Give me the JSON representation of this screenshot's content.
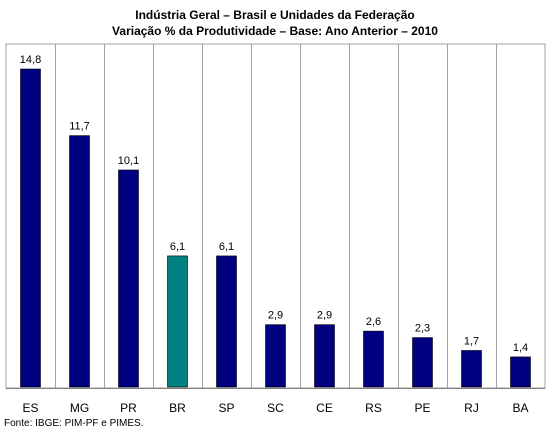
{
  "chart_data": {
    "type": "bar",
    "title": "Indústria Geral – Brasil e Unidades da Federação",
    "subtitle": "Variação % da Produtividade – Base: Ano Anterior – 2010",
    "categories": [
      "ES",
      "MG",
      "PR",
      "BR",
      "SP",
      "SC",
      "CE",
      "RS",
      "PE",
      "RJ",
      "BA"
    ],
    "values": [
      14.8,
      11.7,
      10.1,
      6.1,
      6.1,
      2.9,
      2.9,
      2.6,
      2.3,
      1.7,
      1.4
    ],
    "value_labels": [
      "14,8",
      "11,7",
      "10,1",
      "6,1",
      "6,1",
      "2,9",
      "2,9",
      "2,6",
      "2,3",
      "1,7",
      "1,4"
    ],
    "xlabel": "",
    "ylabel": "",
    "ylim": [
      0,
      16
    ],
    "grid": "vertical",
    "legend": "none",
    "colors": {
      "default_bar": "#000080",
      "highlight_bar": "#008080",
      "grid": "#a0a0a0",
      "axis": "#808080"
    },
    "highlight_category": "BR"
  },
  "source": "Fonte: IBGE: PIM-PF e PIMES."
}
